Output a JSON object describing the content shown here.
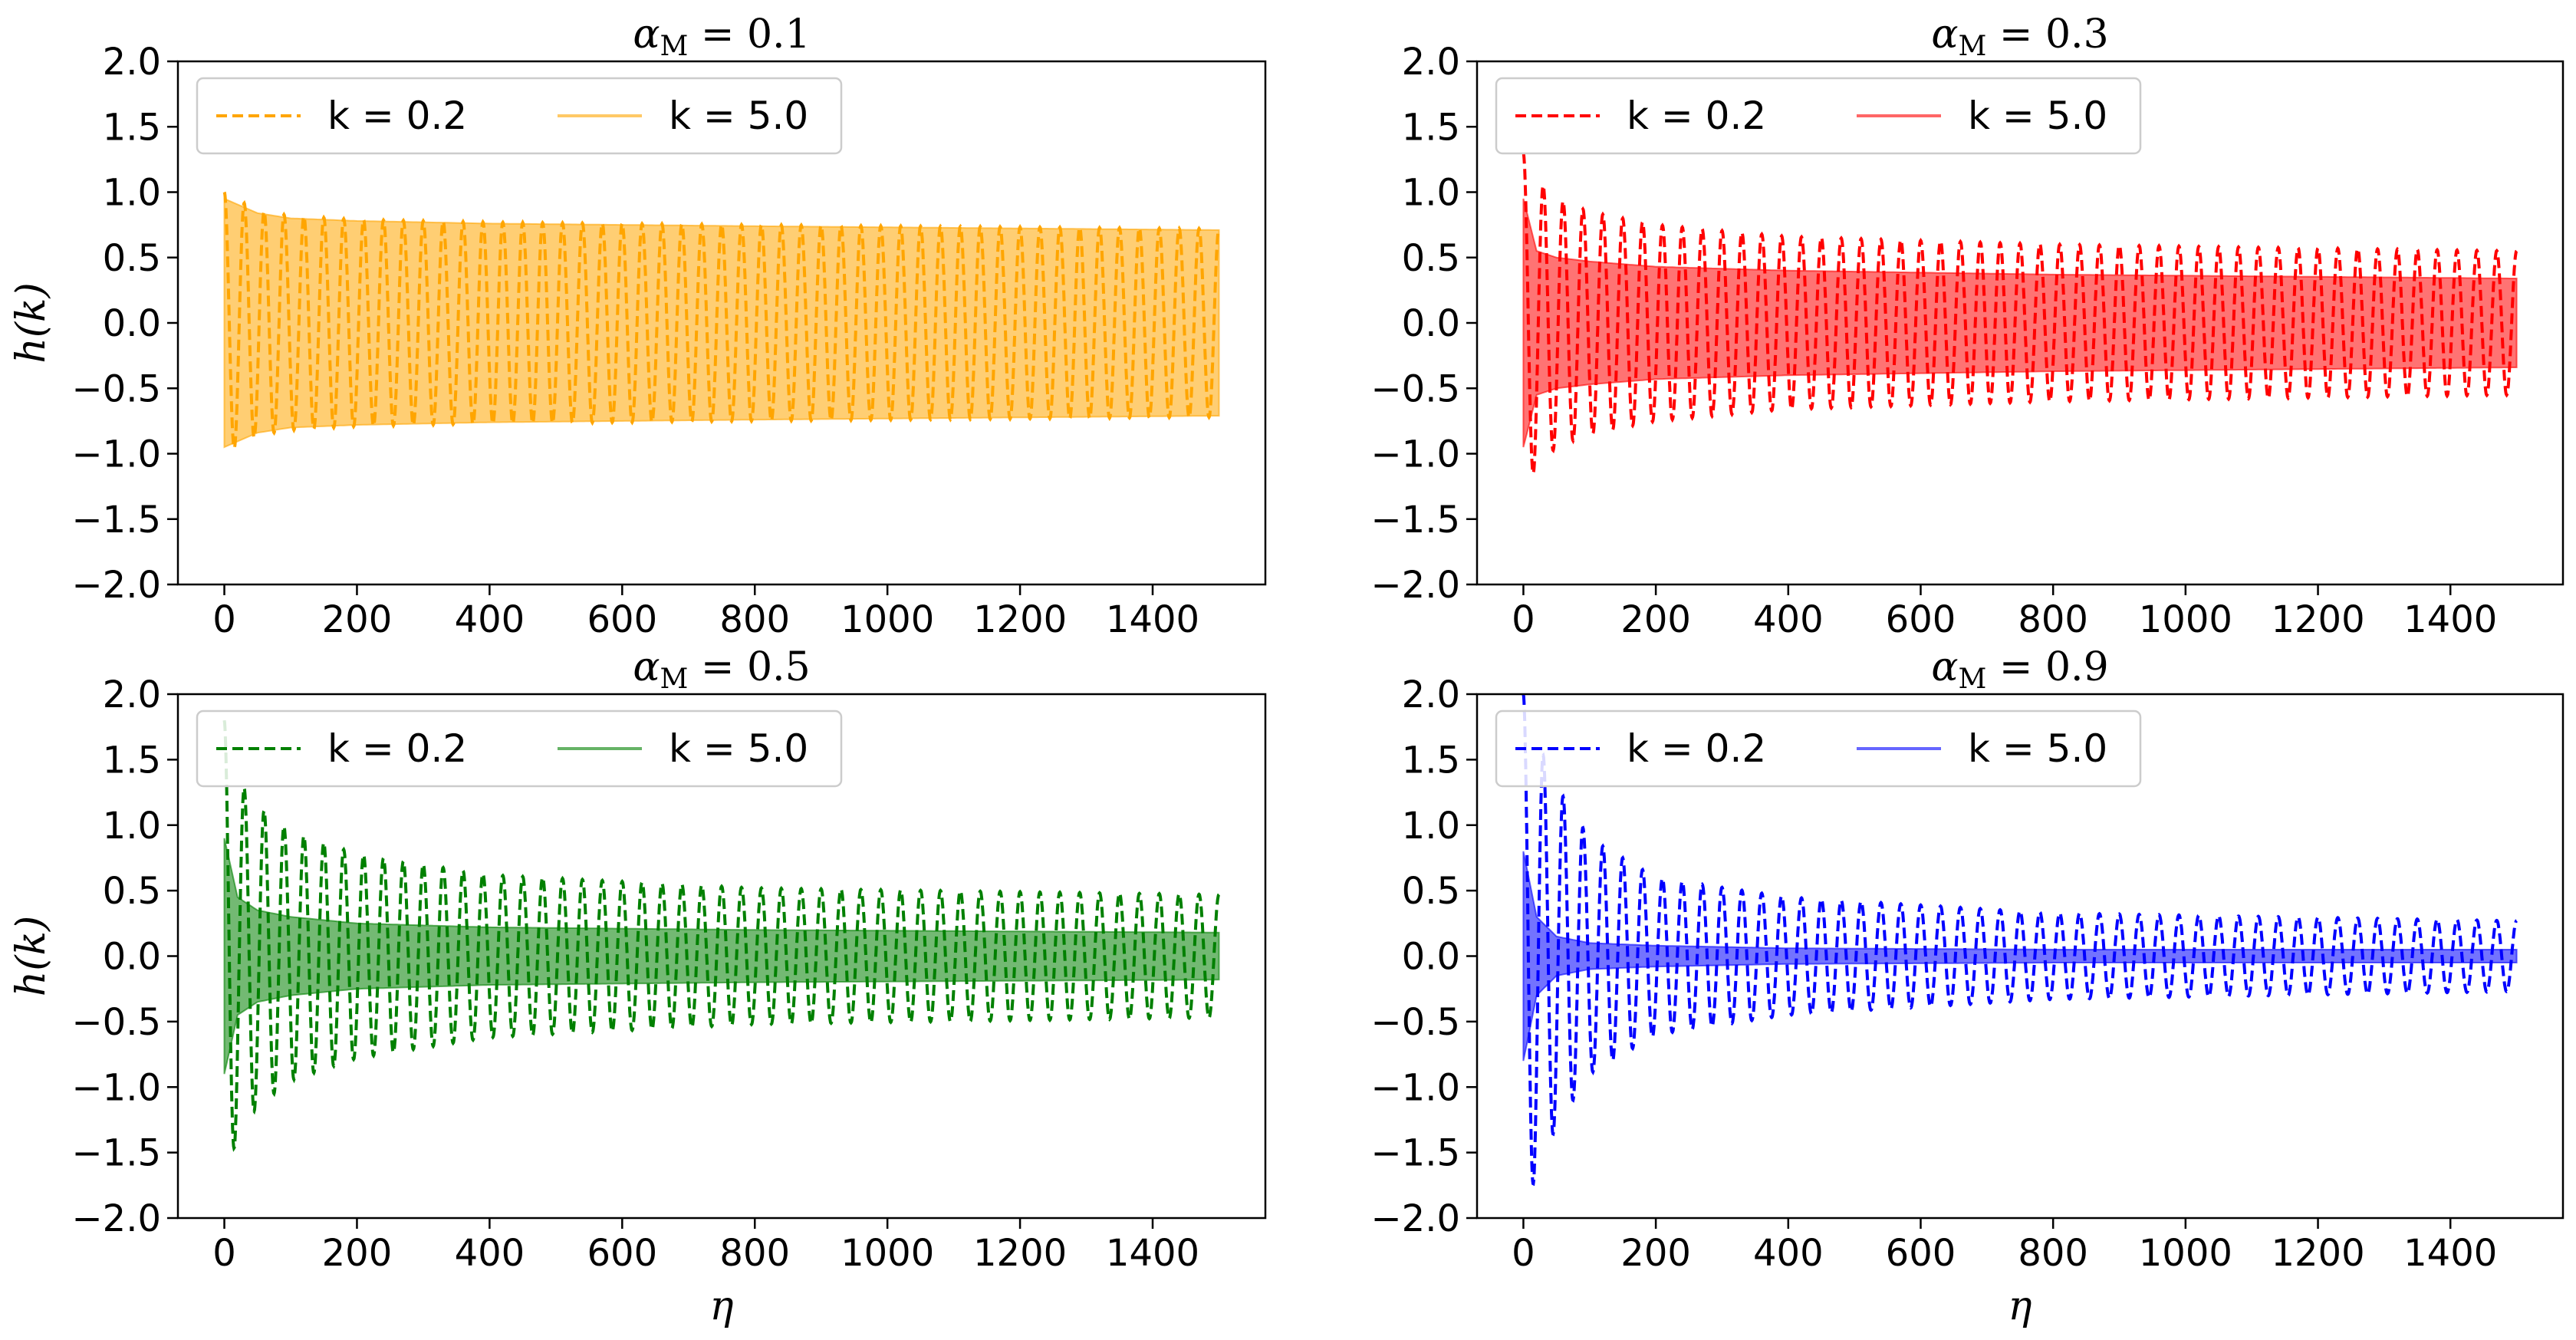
{
  "chart_data": [
    {
      "type": "line",
      "title": "α_M = 0.1",
      "title_main": "α",
      "title_sub": "M",
      "title_rest": " = 0.1",
      "xlabel": "",
      "ylabel": "h(k)",
      "xlim": [
        -70,
        1570
      ],
      "ylim": [
        -2.0,
        2.0
      ],
      "xticks": [
        0,
        200,
        400,
        600,
        800,
        1000,
        1200,
        1400
      ],
      "yticks": [
        -2.0,
        -1.5,
        -1.0,
        -0.5,
        0.0,
        0.5,
        1.0,
        1.5,
        2.0
      ],
      "legend_position": "top-left",
      "color": "#ffa500",
      "series": [
        {
          "name": "k = 0.2",
          "style": "dashed",
          "envelope": {
            "x": [
              0,
              50,
              100,
              200,
              400,
              800,
              1500
            ],
            "amp": [
              1.0,
              0.86,
              0.82,
              0.79,
              0.77,
              0.75,
              0.72
            ]
          },
          "period": 30
        },
        {
          "name": "k = 5.0",
          "style": "solid-band",
          "envelope": {
            "x": [
              0,
              50,
              100,
              200,
              400,
              800,
              1500
            ],
            "amp": [
              0.95,
              0.84,
              0.8,
              0.78,
              0.76,
              0.74,
              0.71
            ]
          }
        }
      ]
    },
    {
      "type": "line",
      "title": "α_M = 0.3",
      "title_main": "α",
      "title_sub": "M",
      "title_rest": " = 0.3",
      "xlabel": "",
      "ylabel": "",
      "xlim": [
        -70,
        1570
      ],
      "ylim": [
        -2.0,
        2.0
      ],
      "xticks": [
        0,
        200,
        400,
        600,
        800,
        1000,
        1200,
        1400
      ],
      "yticks": [
        -2.0,
        -1.5,
        -1.0,
        -0.5,
        0.0,
        0.5,
        1.0,
        1.5,
        2.0
      ],
      "legend_position": "top-left",
      "color": "#ff0000",
      "series": [
        {
          "name": "k = 0.2",
          "style": "dashed",
          "envelope": {
            "x": [
              0,
              20,
              50,
              100,
              200,
              400,
              800,
              1500
            ],
            "amp": [
              1.3,
              1.1,
              0.95,
              0.85,
              0.75,
              0.66,
              0.6,
              0.55
            ]
          },
          "period": 30
        },
        {
          "name": "k = 5.0",
          "style": "solid-band",
          "envelope": {
            "x": [
              0,
              20,
              50,
              100,
              200,
              400,
              800,
              1500
            ],
            "amp": [
              0.95,
              0.55,
              0.5,
              0.47,
              0.43,
              0.4,
              0.37,
              0.34
            ]
          }
        }
      ]
    },
    {
      "type": "line",
      "title": "α_M = 0.5",
      "title_main": "α",
      "title_sub": "M",
      "title_rest": " = 0.5",
      "xlabel": "η",
      "ylabel": "h(k)",
      "xlim": [
        -70,
        1570
      ],
      "ylim": [
        -2.0,
        2.0
      ],
      "xticks": [
        0,
        200,
        400,
        600,
        800,
        1000,
        1200,
        1400
      ],
      "yticks": [
        -2.0,
        -1.5,
        -1.0,
        -0.5,
        0.0,
        0.5,
        1.0,
        1.5,
        2.0
      ],
      "legend_position": "top-left",
      "color": "#008000",
      "series": [
        {
          "name": "k = 0.2",
          "style": "dashed",
          "envelope": {
            "x": [
              0,
              20,
              50,
              100,
              200,
              400,
              800,
              1500
            ],
            "amp": [
              1.8,
              1.35,
              1.15,
              0.95,
              0.78,
              0.62,
              0.52,
              0.47
            ]
          },
          "period": 30
        },
        {
          "name": "k = 5.0",
          "style": "solid-band",
          "envelope": {
            "x": [
              0,
              20,
              50,
              100,
              200,
              400,
              800,
              1500
            ],
            "amp": [
              0.9,
              0.45,
              0.35,
              0.3,
              0.25,
              0.22,
              0.2,
              0.18
            ]
          }
        }
      ]
    },
    {
      "type": "line",
      "title": "α_M = 0.9",
      "title_main": "α",
      "title_sub": "M",
      "title_rest": " = 0.9",
      "xlabel": "η",
      "ylabel": "",
      "xlim": [
        -70,
        1570
      ],
      "ylim": [
        -2.0,
        2.0
      ],
      "xticks": [
        0,
        200,
        400,
        600,
        800,
        1000,
        1200,
        1400
      ],
      "yticks": [
        -2.0,
        -1.5,
        -1.0,
        -0.5,
        0.0,
        0.5,
        1.0,
        1.5,
        2.0
      ],
      "legend_position": "top-left",
      "color": "#0000ff",
      "series": [
        {
          "name": "k = 0.2",
          "style": "dashed",
          "envelope": {
            "x": [
              0,
              20,
              50,
              100,
              200,
              400,
              800,
              1500
            ],
            "amp": [
              2.0,
              1.65,
              1.3,
              0.9,
              0.6,
              0.45,
              0.33,
              0.27
            ]
          },
          "period": 30
        },
        {
          "name": "k = 5.0",
          "style": "solid-band",
          "envelope": {
            "x": [
              0,
              20,
              50,
              100,
              200,
              400,
              800,
              1500
            ],
            "amp": [
              0.8,
              0.3,
              0.15,
              0.1,
              0.08,
              0.06,
              0.05,
              0.05
            ]
          }
        }
      ]
    }
  ]
}
